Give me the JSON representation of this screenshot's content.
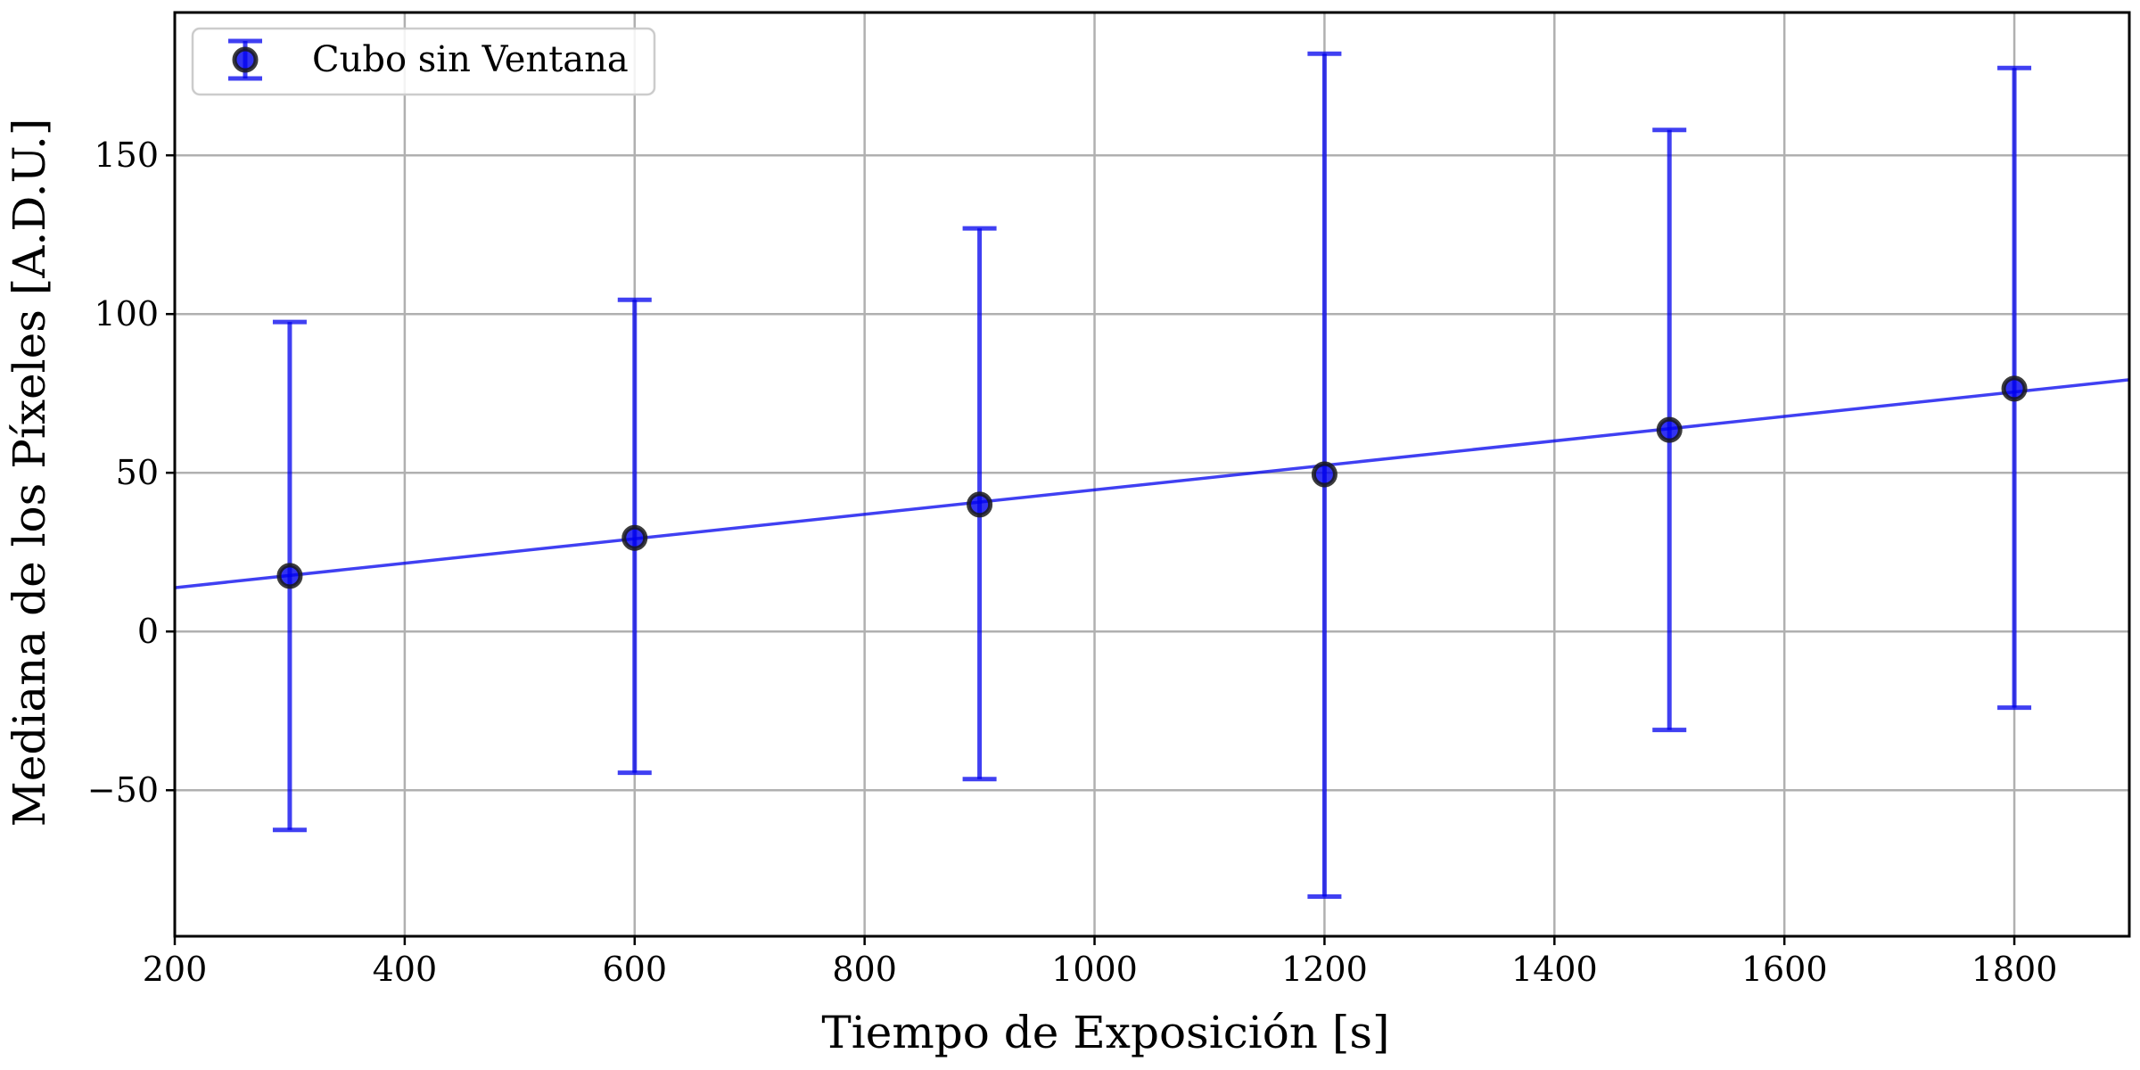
{
  "chart_data": {
    "type": "scatter",
    "title": "",
    "xlabel": "Tiempo de Exposición [s]",
    "ylabel": "Mediana de los Píxeles [A.D.U.]",
    "xlim": [
      200,
      1900
    ],
    "ylim": [
      -96,
      195
    ],
    "x_ticks": [
      200,
      400,
      600,
      800,
      1000,
      1200,
      1400,
      1600,
      1800
    ],
    "x_tick_labels": [
      "200",
      "400",
      "600",
      "800",
      "1000",
      "1200",
      "1400",
      "1600",
      "1800"
    ],
    "y_ticks": [
      -50,
      0,
      50,
      100,
      150
    ],
    "y_tick_labels": [
      "−50",
      "0",
      "50",
      "100",
      "150"
    ],
    "grid": true,
    "legend_position": "top-left",
    "series": [
      {
        "name": "Cubo sin Ventana",
        "color": "#0000ee",
        "x": [
          300,
          600,
          900,
          1200,
          1500,
          1800
        ],
        "y": [
          17.5,
          29.5,
          40.0,
          49.5,
          63.5,
          76.5
        ],
        "err_low": [
          -62.5,
          -44.5,
          -46.5,
          -83.5,
          -31.0,
          -24.0
        ],
        "err_high": [
          97.5,
          104.5,
          127.0,
          182.0,
          158.0,
          177.5
        ]
      }
    ],
    "fit_line": {
      "color": "#0000ee",
      "x": [
        200,
        1900
      ],
      "y": [
        13.8,
        79.3
      ]
    }
  }
}
